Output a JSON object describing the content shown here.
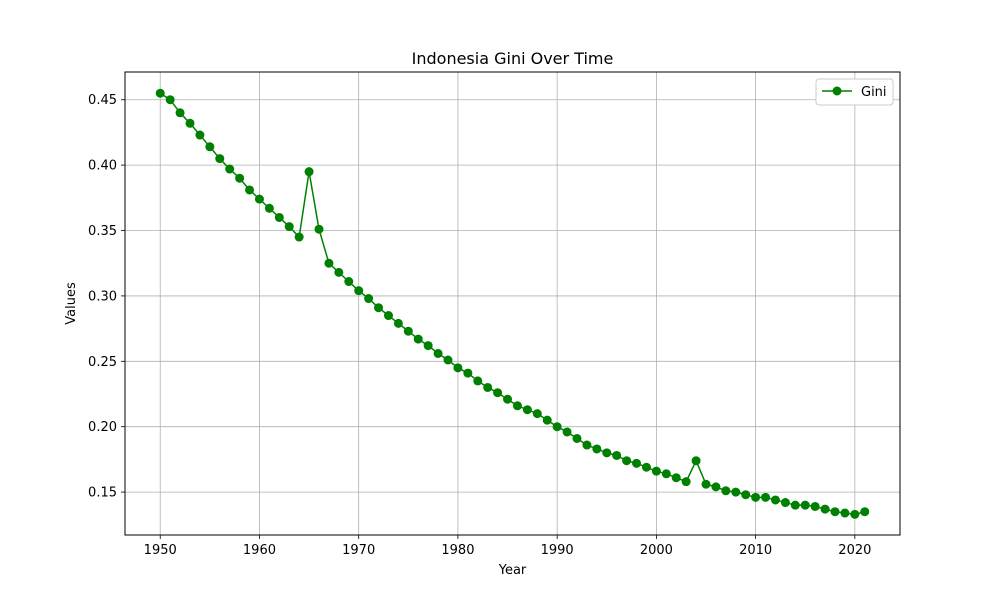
{
  "chart_data": {
    "type": "line",
    "title": "Indonesia Gini Over Time",
    "xlabel": "Year",
    "ylabel": "Values",
    "xlim": [
      1946.45,
      2024.55
    ],
    "ylim": [
      0.1172,
      0.4712
    ],
    "xticks": [
      1950,
      1960,
      1970,
      1980,
      1990,
      2000,
      2010,
      2020
    ],
    "yticks": [
      0.15,
      0.2,
      0.25,
      0.3,
      0.35,
      0.4,
      0.45
    ],
    "xtick_labels": [
      "1950",
      "1960",
      "1970",
      "1980",
      "1990",
      "2000",
      "2010",
      "2020"
    ],
    "ytick_labels": [
      "0.15",
      "0.20",
      "0.25",
      "0.30",
      "0.35",
      "0.40",
      "0.45"
    ],
    "grid": true,
    "legend_position": "top-right",
    "series": [
      {
        "name": "Gini",
        "color": "#008000",
        "marker": "circle",
        "x": [
          1950,
          1951,
          1952,
          1953,
          1954,
          1955,
          1956,
          1957,
          1958,
          1959,
          1960,
          1961,
          1962,
          1963,
          1964,
          1965,
          1966,
          1967,
          1968,
          1969,
          1970,
          1971,
          1972,
          1973,
          1974,
          1975,
          1976,
          1977,
          1978,
          1979,
          1980,
          1981,
          1982,
          1983,
          1984,
          1985,
          1986,
          1987,
          1988,
          1989,
          1990,
          1991,
          1992,
          1993,
          1994,
          1995,
          1996,
          1997,
          1998,
          1999,
          2000,
          2001,
          2002,
          2003,
          2004,
          2005,
          2006,
          2007,
          2008,
          2009,
          2010,
          2011,
          2012,
          2013,
          2014,
          2015,
          2016,
          2017,
          2018,
          2019,
          2020,
          2021
        ],
        "y": [
          0.455,
          0.45,
          0.44,
          0.432,
          0.423,
          0.414,
          0.405,
          0.397,
          0.39,
          0.381,
          0.374,
          0.367,
          0.36,
          0.353,
          0.345,
          0.395,
          0.351,
          0.325,
          0.318,
          0.311,
          0.304,
          0.298,
          0.291,
          0.285,
          0.279,
          0.273,
          0.267,
          0.262,
          0.256,
          0.251,
          0.245,
          0.241,
          0.235,
          0.23,
          0.226,
          0.221,
          0.216,
          0.213,
          0.21,
          0.205,
          0.2,
          0.196,
          0.191,
          0.186,
          0.183,
          0.18,
          0.178,
          0.174,
          0.172,
          0.169,
          0.166,
          0.164,
          0.161,
          0.158,
          0.174,
          0.156,
          0.154,
          0.151,
          0.15,
          0.148,
          0.146,
          0.146,
          0.144,
          0.142,
          0.14,
          0.14,
          0.139,
          0.137,
          0.135,
          0.134,
          0.133,
          0.135
        ]
      }
    ]
  }
}
